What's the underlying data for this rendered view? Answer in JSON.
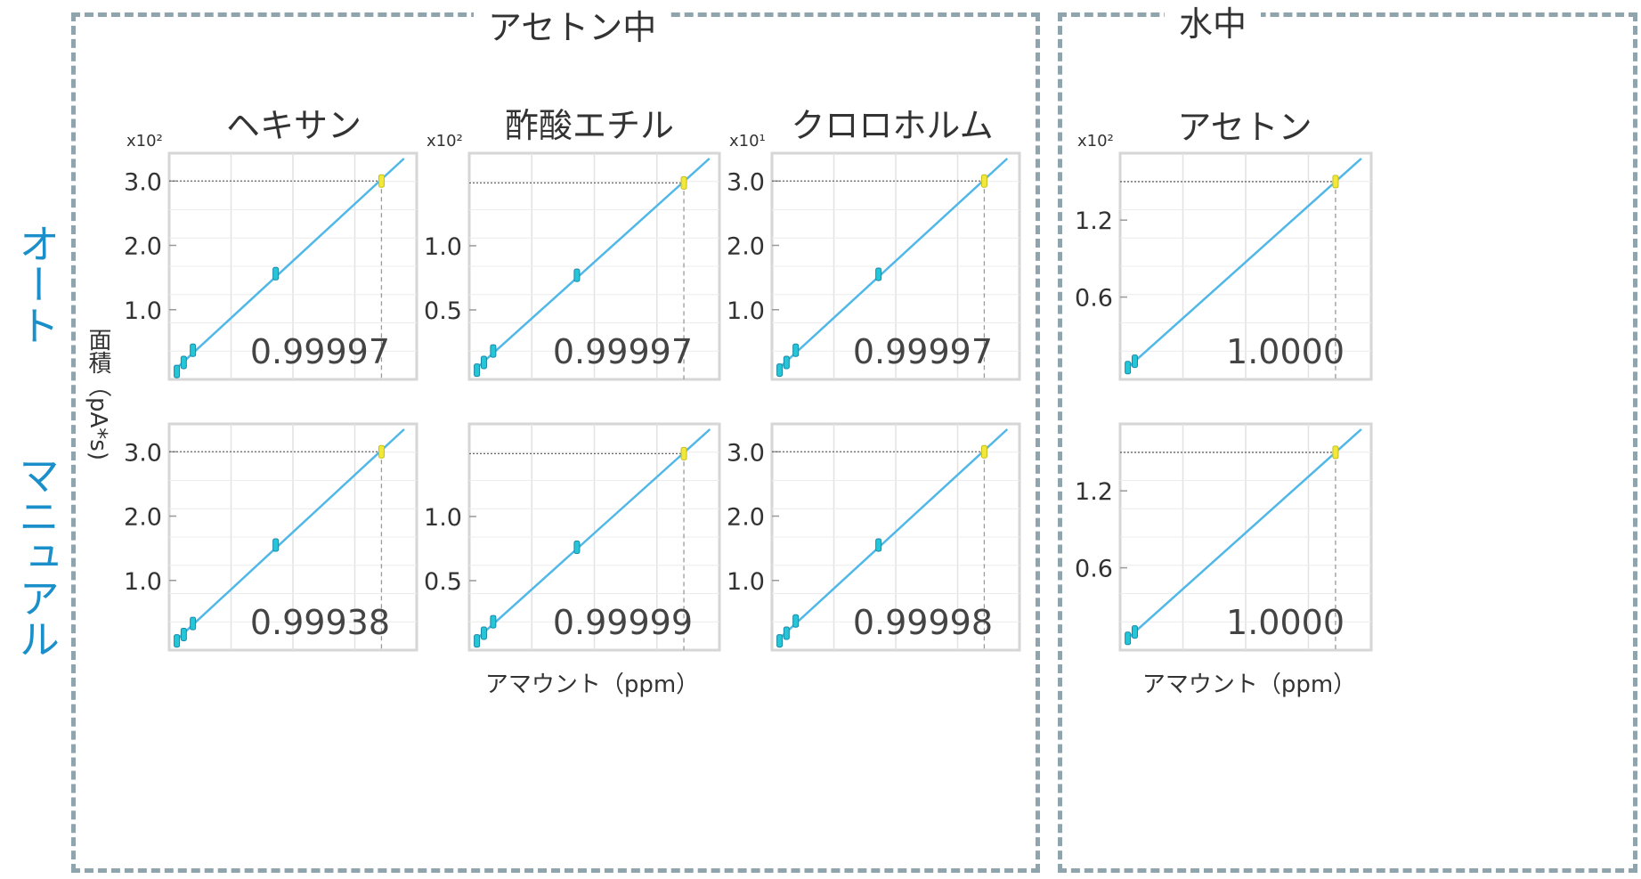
{
  "groups": {
    "acetone_label": "アセトン中",
    "water_label": "水中"
  },
  "rows": {
    "auto": "オート",
    "manual": "マニュアル"
  },
  "y_axis_title": "面積（pA*s)",
  "x_axis_title": "アマウント（ppm）",
  "colors": {
    "line": "#4fb8e8",
    "point": "#25c6d8",
    "highlight": "#f2e83c",
    "frame": "#d6d6d6",
    "grid": "#e2e2e2",
    "dashed_border": "#90a4ae",
    "row_label": "#1a8fc9"
  },
  "chart_data": [
    {
      "type": "scatter",
      "title": "ヘキサン",
      "row": "オート",
      "multiplier": "x10²",
      "y_ticks": [
        1.0,
        2.0,
        3.0
      ],
      "y_tick_labels": [
        "1.0",
        "2.0",
        "3.0"
      ],
      "ylim": [
        0,
        3.35
      ],
      "x": [
        0.1,
        0.4,
        0.8,
        4.4,
        9.0
      ],
      "y": [
        0.04,
        0.18,
        0.37,
        1.56,
        3.0
      ],
      "r_squared": "0.99997"
    },
    {
      "type": "scatter",
      "title": "酢酸エチル",
      "row": "オート",
      "multiplier": "x10²",
      "y_ticks": [
        0.5,
        1.0
      ],
      "y_tick_labels": [
        "0.5",
        "1.0"
      ],
      "ylim": [
        0,
        1.68
      ],
      "x": [
        0.1,
        0.4,
        0.8,
        4.4,
        9.0
      ],
      "y": [
        0.03,
        0.09,
        0.18,
        0.77,
        1.49
      ],
      "r_squared": "0.99997"
    },
    {
      "type": "scatter",
      "title": "クロロホルム",
      "row": "オート",
      "multiplier": "x10¹",
      "y_ticks": [
        1.0,
        2.0,
        3.0
      ],
      "y_tick_labels": [
        "1.0",
        "2.0",
        "3.0"
      ],
      "ylim": [
        0,
        3.35
      ],
      "x": [
        0.1,
        0.4,
        0.8,
        4.4,
        9.0
      ],
      "y": [
        0.06,
        0.18,
        0.37,
        1.55,
        3.0
      ],
      "r_squared": "0.99997"
    },
    {
      "type": "scatter",
      "title": "アセトン",
      "row": "オート",
      "multiplier": "x10²",
      "y_ticks": [
        0.6,
        1.2
      ],
      "y_tick_labels": [
        "0.6",
        "1.2"
      ],
      "ylim": [
        0,
        1.68
      ],
      "x": [
        0.1,
        0.4,
        9.0
      ],
      "y": [
        0.05,
        0.1,
        1.5
      ],
      "r_squared": "1.0000"
    },
    {
      "type": "scatter",
      "title": "",
      "row": "マニュアル",
      "multiplier": "",
      "y_ticks": [
        1.0,
        2.0,
        3.0
      ],
      "y_tick_labels": [
        "1.0",
        "2.0",
        "3.0"
      ],
      "ylim": [
        0,
        3.35
      ],
      "x": [
        0.1,
        0.4,
        0.8,
        4.4,
        9.0
      ],
      "y": [
        0.06,
        0.16,
        0.33,
        1.55,
        3.0
      ],
      "r_squared": "0.99938"
    },
    {
      "type": "scatter",
      "title": "",
      "row": "マニュアル",
      "multiplier": "",
      "y_ticks": [
        0.5,
        1.0
      ],
      "y_tick_labels": [
        "0.5",
        "1.0"
      ],
      "ylim": [
        0,
        1.68
      ],
      "x": [
        0.1,
        0.4,
        0.8,
        4.4,
        9.0
      ],
      "y": [
        0.03,
        0.09,
        0.18,
        0.76,
        1.49
      ],
      "r_squared": "0.99999"
    },
    {
      "type": "scatter",
      "title": "",
      "row": "マニュアル",
      "multiplier": "",
      "y_ticks": [
        1.0,
        2.0,
        3.0
      ],
      "y_tick_labels": [
        "1.0",
        "2.0",
        "3.0"
      ],
      "ylim": [
        0,
        3.35
      ],
      "x": [
        0.1,
        0.4,
        0.8,
        4.4,
        9.0
      ],
      "y": [
        0.06,
        0.18,
        0.37,
        1.55,
        3.0
      ],
      "r_squared": "0.99998"
    },
    {
      "type": "scatter",
      "title": "",
      "row": "マニュアル",
      "multiplier": "",
      "y_ticks": [
        0.6,
        1.2
      ],
      "y_tick_labels": [
        "0.6",
        "1.2"
      ],
      "ylim": [
        0,
        1.68
      ],
      "x": [
        0.1,
        0.4,
        9.0
      ],
      "y": [
        0.05,
        0.1,
        1.5
      ],
      "r_squared": "1.0000"
    }
  ]
}
